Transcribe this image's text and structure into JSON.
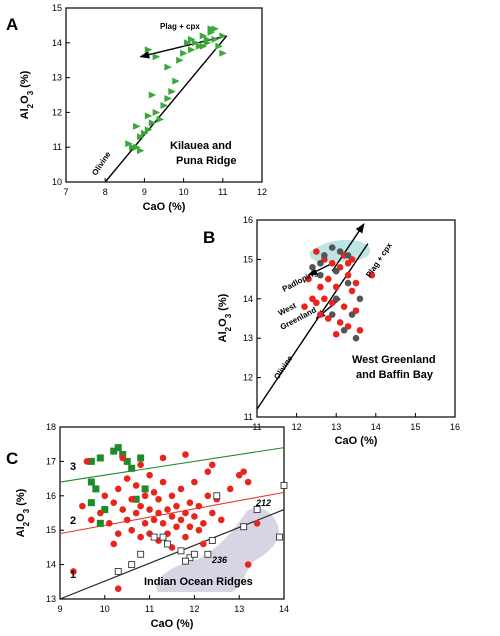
{
  "colors": {
    "green": "#3aa83a",
    "red": "#e8241c",
    "gray": "#555555",
    "blob": "#d8d4e4",
    "teal": "#bfe4e4",
    "darkgreen": "#1f8a2a",
    "redline": "#e33a2a"
  },
  "panel_labels": [
    "A",
    "B",
    "C"
  ],
  "axis_titles": {
    "x": "CaO (%)",
    "y_main": "Al",
    "y_sub": "2",
    "y_rest": "O",
    "y_sub2": "3",
    "y_tail": " (%)"
  },
  "annotations": {
    "a_plag": "Plag + cpx",
    "a_olivine": "Olivine",
    "a_title_line1": "Kilauea and",
    "a_title_line2": "Puna Ridge",
    "b_plag": "Plag + cpx",
    "b_padloping": "Padloping",
    "b_west": "West",
    "b_greenland": "Greenland",
    "b_olivine": "Olivine",
    "b_title_line1": "West Greenland",
    "b_title_line2": "and Baffin Bay",
    "c_line1": "1",
    "c_line2": "2",
    "c_line3": "3",
    "c_212": "212",
    "c_236": "236",
    "c_title": "Indian Ocean Ridges"
  },
  "chart_data": [
    {
      "type": "scatter",
      "panel": "A",
      "xlabel": "CaO (%)",
      "ylabel": "Al2O3 (%)",
      "xlim": [
        7,
        12
      ],
      "ylim": [
        10,
        15
      ],
      "xticks": [
        7,
        8,
        9,
        10,
        11,
        12
      ],
      "yticks": [
        10,
        11,
        12,
        13,
        14,
        15
      ],
      "series": [
        {
          "marker": "triangle-green",
          "points": [
            [
              8.7,
              11.0
            ],
            [
              8.6,
              11.1
            ],
            [
              8.8,
              11.0
            ],
            [
              8.9,
              10.9
            ],
            [
              8.9,
              11.3
            ],
            [
              9.0,
              11.4
            ],
            [
              8.8,
              11.6
            ],
            [
              9.1,
              11.5
            ],
            [
              9.2,
              11.7
            ],
            [
              9.1,
              11.9
            ],
            [
              9.4,
              11.8
            ],
            [
              9.3,
              12.0
            ],
            [
              9.5,
              12.2
            ],
            [
              9.2,
              12.5
            ],
            [
              9.6,
              12.4
            ],
            [
              9.7,
              12.6
            ],
            [
              9.8,
              12.9
            ],
            [
              9.6,
              13.3
            ],
            [
              9.9,
              13.5
            ],
            [
              10.0,
              13.7
            ],
            [
              10.2,
              13.8
            ],
            [
              10.3,
              14.0
            ],
            [
              10.1,
              14.0
            ],
            [
              10.4,
              13.9
            ],
            [
              10.5,
              14.2
            ],
            [
              10.6,
              14.0
            ],
            [
              10.7,
              14.3
            ],
            [
              10.8,
              14.1
            ],
            [
              10.6,
              14.1
            ],
            [
              10.9,
              13.9
            ],
            [
              11.0,
              14.2
            ],
            [
              10.5,
              13.9
            ],
            [
              10.8,
              14.4
            ],
            [
              10.7,
              14.4
            ],
            [
              10.2,
              14.1
            ],
            [
              11.0,
              13.7
            ],
            [
              9.1,
              13.8
            ],
            [
              9.3,
              13.6
            ]
          ]
        }
      ],
      "lines": [
        {
          "label": "Olivine",
          "x": [
            8.0,
            11.1
          ],
          "y": [
            10.0,
            14.2
          ]
        },
        {
          "label": "Plag + cpx",
          "x": [
            11.1,
            8.9
          ],
          "y": [
            14.2,
            13.6
          ],
          "arrow": true
        }
      ]
    },
    {
      "type": "scatter",
      "panel": "B",
      "xlabel": "CaO (%)",
      "ylabel": "Al2O3 (%)",
      "xlim": [
        11,
        16
      ],
      "ylim": [
        11,
        16
      ],
      "xticks": [
        11,
        12,
        13,
        14,
        15,
        16
      ],
      "yticks": [
        11,
        12,
        13,
        14,
        15,
        16
      ],
      "series": [
        {
          "marker": "circle-red",
          "points": [
            [
              12.5,
              15.2
            ],
            [
              12.7,
              15.0
            ],
            [
              12.9,
              14.9
            ],
            [
              13.1,
              14.8
            ],
            [
              13.3,
              14.6
            ],
            [
              12.6,
              14.3
            ],
            [
              12.8,
              14.5
            ],
            [
              13.0,
              14.3
            ],
            [
              13.4,
              14.2
            ],
            [
              13.5,
              14.4
            ],
            [
              12.4,
              14.0
            ],
            [
              12.7,
              14.0
            ],
            [
              12.9,
              13.9
            ],
            [
              13.2,
              13.8
            ],
            [
              13.5,
              13.7
            ],
            [
              12.6,
              13.6
            ],
            [
              12.8,
              13.5
            ],
            [
              13.1,
              13.4
            ],
            [
              13.3,
              13.3
            ],
            [
              13.6,
              13.2
            ],
            [
              13.0,
              13.1
            ],
            [
              12.2,
              13.8
            ],
            [
              12.5,
              13.9
            ],
            [
              13.9,
              14.6
            ],
            [
              12.3,
              14.5
            ],
            [
              13.2,
              15.1
            ],
            [
              13.4,
              15.0
            ],
            [
              13.3,
              14.9
            ]
          ]
        },
        {
          "marker": "circle-gray",
          "points": [
            [
              12.4,
              14.8
            ],
            [
              12.7,
              15.1
            ],
            [
              12.9,
              15.3
            ],
            [
              13.1,
              15.2
            ],
            [
              13.3,
              15.1
            ],
            [
              12.6,
              14.9
            ],
            [
              13.0,
              14.7
            ],
            [
              13.3,
              14.4
            ],
            [
              13.0,
              14.0
            ],
            [
              13.4,
              13.6
            ],
            [
              13.5,
              13.0
            ],
            [
              13.2,
              13.2
            ],
            [
              12.6,
              14.6
            ],
            [
              12.9,
              13.6
            ],
            [
              13.6,
              14.0
            ]
          ]
        }
      ],
      "lines": [
        {
          "label": "Olivine",
          "x": [
            11.0,
            13.8
          ],
          "y": [
            11.2,
            15.4
          ]
        },
        {
          "label": "Plag + cpx",
          "x": [
            12.9,
            13.7
          ],
          "y": [
            14.7,
            15.9
          ],
          "arrow": true
        },
        {
          "label": "Padloping",
          "x": [
            12.9,
            12.3
          ],
          "y": [
            14.9,
            14.6
          ],
          "arrow": true
        },
        {
          "label": "West Greenland",
          "x": [
            13.1,
            12.5
          ],
          "y": [
            14.0,
            13.5
          ],
          "arrow": true
        }
      ]
    },
    {
      "type": "scatter",
      "panel": "C",
      "xlabel": "CaO (%)",
      "ylabel": "Al2O3 (%)",
      "xlim": [
        9,
        14
      ],
      "ylim": [
        13,
        18
      ],
      "xticks": [
        9,
        10,
        11,
        12,
        13,
        14
      ],
      "yticks": [
        13,
        14,
        15,
        16,
        17,
        18
      ],
      "series": [
        {
          "marker": "square-green",
          "points": [
            [
              9.7,
              17.0
            ],
            [
              9.9,
              17.1
            ],
            [
              10.2,
              17.3
            ],
            [
              10.3,
              17.4
            ],
            [
              10.4,
              17.2
            ],
            [
              10.5,
              17.0
            ],
            [
              10.6,
              16.8
            ],
            [
              10.8,
              17.1
            ],
            [
              9.7,
              16.4
            ],
            [
              9.8,
              16.2
            ],
            [
              9.7,
              15.8
            ],
            [
              10.0,
              15.6
            ],
            [
              9.9,
              15.2
            ],
            [
              10.7,
              15.9
            ],
            [
              10.9,
              16.2
            ]
          ]
        },
        {
          "marker": "circle-red",
          "points": [
            [
              9.3,
              13.8
            ],
            [
              9.5,
              15.7
            ],
            [
              9.7,
              15.3
            ],
            [
              9.9,
              15.5
            ],
            [
              10.0,
              16.0
            ],
            [
              10.1,
              15.2
            ],
            [
              10.2,
              15.8
            ],
            [
              10.3,
              16.2
            ],
            [
              10.3,
              14.9
            ],
            [
              10.4,
              15.6
            ],
            [
              10.5,
              15.3
            ],
            [
              10.5,
              16.5
            ],
            [
              10.6,
              15.0
            ],
            [
              10.6,
              15.9
            ],
            [
              10.7,
              15.5
            ],
            [
              10.7,
              16.3
            ],
            [
              10.8,
              14.8
            ],
            [
              10.8,
              15.7
            ],
            [
              10.9,
              15.2
            ],
            [
              10.9,
              16.0
            ],
            [
              11.0,
              15.6
            ],
            [
              11.0,
              14.9
            ],
            [
              11.0,
              16.6
            ],
            [
              11.1,
              15.3
            ],
            [
              11.1,
              16.1
            ],
            [
              11.2,
              15.5
            ],
            [
              11.2,
              14.7
            ],
            [
              11.2,
              15.9
            ],
            [
              11.3,
              15.2
            ],
            [
              11.3,
              16.4
            ],
            [
              11.4,
              15.6
            ],
            [
              11.4,
              14.9
            ],
            [
              11.5,
              15.4
            ],
            [
              11.5,
              16.0
            ],
            [
              11.6,
              15.1
            ],
            [
              11.6,
              15.7
            ],
            [
              11.7,
              15.3
            ],
            [
              11.7,
              16.2
            ],
            [
              11.8,
              15.5
            ],
            [
              11.8,
              14.8
            ],
            [
              11.9,
              15.1
            ],
            [
              11.9,
              15.8
            ],
            [
              12.0,
              15.4
            ],
            [
              12.0,
              16.4
            ],
            [
              12.1,
              15.0
            ],
            [
              12.1,
              15.7
            ],
            [
              12.2,
              15.2
            ],
            [
              12.3,
              16.0
            ],
            [
              12.4,
              15.5
            ],
            [
              12.4,
              16.9
            ],
            [
              12.5,
              15.9
            ],
            [
              12.6,
              15.3
            ],
            [
              12.8,
              16.2
            ],
            [
              13.0,
              16.6
            ],
            [
              13.1,
              16.7
            ],
            [
              13.2,
              16.4
            ],
            [
              13.4,
              15.2
            ],
            [
              10.4,
              17.1
            ],
            [
              11.8,
              17.2
            ],
            [
              12.3,
              16.7
            ],
            [
              9.6,
              17.0
            ],
            [
              10.2,
              14.6
            ],
            [
              11.5,
              14.5
            ],
            [
              12.2,
              14.6
            ],
            [
              13.2,
              14.0
            ],
            [
              10.3,
              13.3
            ],
            [
              10.8,
              16.9
            ],
            [
              11.3,
              17.1
            ]
          ]
        },
        {
          "marker": "square-open",
          "points": [
            [
              10.3,
              13.8
            ],
            [
              10.6,
              14.0
            ],
            [
              10.8,
              14.3
            ],
            [
              11.1,
              14.8
            ],
            [
              11.3,
              14.8
            ],
            [
              11.4,
              14.6
            ],
            [
              11.7,
              14.4
            ],
            [
              11.9,
              14.2
            ],
            [
              11.8,
              14.1
            ],
            [
              12.0,
              14.3
            ],
            [
              12.3,
              14.3
            ],
            [
              12.4,
              14.7
            ],
            [
              12.5,
              16.0
            ],
            [
              13.1,
              15.1
            ],
            [
              13.4,
              15.6
            ],
            [
              13.9,
              14.8
            ],
            [
              14.0,
              16.3
            ]
          ]
        }
      ],
      "lines": [
        {
          "label": "1",
          "x": [
            9.0,
            14.0
          ],
          "y": [
            13.0,
            15.6
          ]
        },
        {
          "label": "2",
          "x": [
            9.0,
            14.0
          ],
          "y": [
            14.9,
            16.1
          ]
        },
        {
          "label": "3",
          "x": [
            9.0,
            14.0
          ],
          "y": [
            16.4,
            17.4
          ]
        }
      ],
      "shaded_region": "Indian Ocean Ridges"
    }
  ]
}
